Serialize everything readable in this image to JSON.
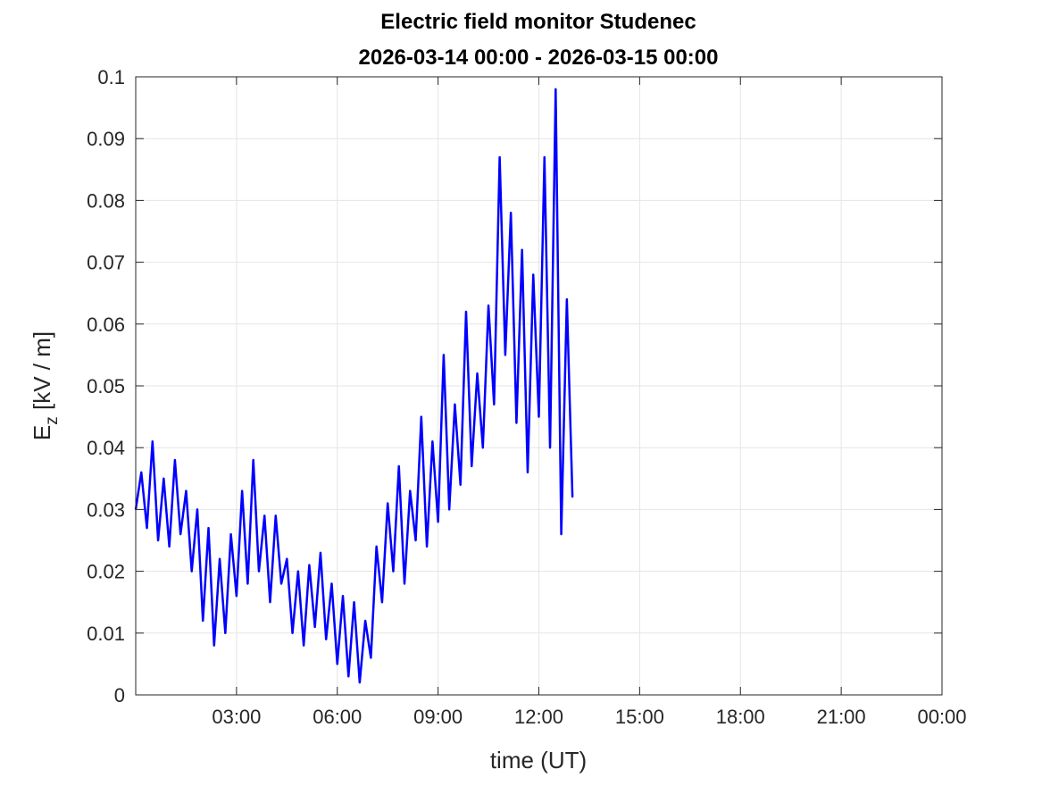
{
  "chart_data": {
    "type": "line",
    "title": "Electric field monitor Studenec",
    "subtitle": "2026-03-14 00:00 - 2026-03-15 00:00",
    "xlabel": "time (UT)",
    "ylabel_main": "E",
    "ylabel_sub": "z",
    "ylabel_unit": " [kV / m]",
    "xlim_hours": [
      0,
      24
    ],
    "ylim": [
      0,
      0.1
    ],
    "grid": true,
    "line_color": "#0000ff",
    "x_ticks": [
      {
        "hour": 3,
        "label": "03:00"
      },
      {
        "hour": 6,
        "label": "06:00"
      },
      {
        "hour": 9,
        "label": "09:00"
      },
      {
        "hour": 12,
        "label": "12:00"
      },
      {
        "hour": 15,
        "label": "15:00"
      },
      {
        "hour": 18,
        "label": "18:00"
      },
      {
        "hour": 21,
        "label": "21:00"
      },
      {
        "hour": 24,
        "label": "00:00"
      }
    ],
    "y_ticks": [
      "0",
      "0.01",
      "0.02",
      "0.03",
      "0.04",
      "0.05",
      "0.06",
      "0.07",
      "0.08",
      "0.09",
      "0.1"
    ],
    "series": [
      {
        "x": [
          "00:00",
          "00:10",
          "00:20",
          "00:30",
          "00:40",
          "00:50",
          "01:00",
          "01:10",
          "01:20",
          "01:30",
          "01:40",
          "01:50",
          "02:00",
          "02:10",
          "02:20",
          "02:30",
          "02:40",
          "02:50",
          "03:00",
          "03:10",
          "03:20",
          "03:30",
          "03:40",
          "03:50",
          "04:00",
          "04:10",
          "04:20",
          "04:30",
          "04:40",
          "04:50",
          "05:00",
          "05:10",
          "05:20",
          "05:30",
          "05:40",
          "05:50",
          "06:00",
          "06:10",
          "06:20",
          "06:30",
          "06:40",
          "06:50",
          "07:00",
          "07:10",
          "07:20",
          "07:30",
          "07:40",
          "07:50",
          "08:00",
          "08:10",
          "08:20",
          "08:30",
          "08:40",
          "08:50",
          "09:00",
          "09:10",
          "09:20",
          "09:30",
          "09:40",
          "09:50",
          "10:00",
          "10:10",
          "10:20",
          "10:30",
          "10:40",
          "10:50",
          "11:00",
          "11:10",
          "11:20",
          "11:30",
          "11:40",
          "11:50",
          "12:00",
          "12:10",
          "12:20",
          "12:30",
          "12:40",
          "12:50",
          "13:00"
        ],
        "values": [
          0.03,
          0.036,
          0.027,
          0.041,
          0.025,
          0.035,
          0.024,
          0.038,
          0.026,
          0.033,
          0.02,
          0.03,
          0.012,
          0.027,
          0.008,
          0.022,
          0.01,
          0.026,
          0.016,
          0.033,
          0.018,
          0.038,
          0.02,
          0.029,
          0.015,
          0.029,
          0.018,
          0.022,
          0.01,
          0.02,
          0.008,
          0.021,
          0.011,
          0.023,
          0.009,
          0.018,
          0.005,
          0.016,
          0.003,
          0.015,
          0.002,
          0.012,
          0.006,
          0.024,
          0.015,
          0.031,
          0.02,
          0.037,
          0.018,
          0.033,
          0.025,
          0.045,
          0.024,
          0.041,
          0.028,
          0.055,
          0.03,
          0.047,
          0.034,
          0.062,
          0.037,
          0.052,
          0.04,
          0.063,
          0.047,
          0.087,
          0.055,
          0.078,
          0.044,
          0.072,
          0.036,
          0.068,
          0.045,
          0.087,
          0.04,
          0.098,
          0.026,
          0.064,
          0.032
        ]
      }
    ]
  }
}
